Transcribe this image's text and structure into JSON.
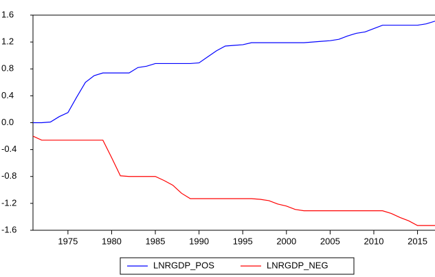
{
  "chart_data": {
    "type": "line",
    "x": [
      1971,
      1972,
      1973,
      1974,
      1975,
      1976,
      1977,
      1978,
      1979,
      1980,
      1981,
      1982,
      1983,
      1984,
      1985,
      1986,
      1987,
      1988,
      1989,
      1990,
      1991,
      1992,
      1993,
      1994,
      1995,
      1996,
      1997,
      1998,
      1999,
      2000,
      2001,
      2002,
      2003,
      2004,
      2005,
      2006,
      2007,
      2008,
      2009,
      2010,
      2011,
      2012,
      2013,
      2014,
      2015,
      2016,
      2017
    ],
    "series": [
      {
        "name": "LNRGDP_POS",
        "color": "#0000ff",
        "values": [
          0.0,
          0.0,
          0.01,
          0.09,
          0.15,
          0.38,
          0.6,
          0.7,
          0.74,
          0.74,
          0.74,
          0.74,
          0.82,
          0.84,
          0.88,
          0.88,
          0.88,
          0.88,
          0.88,
          0.89,
          0.98,
          1.07,
          1.14,
          1.15,
          1.16,
          1.19,
          1.19,
          1.19,
          1.19,
          1.19,
          1.19,
          1.19,
          1.2,
          1.21,
          1.22,
          1.24,
          1.29,
          1.33,
          1.35,
          1.4,
          1.45,
          1.45,
          1.45,
          1.45,
          1.45,
          1.47,
          1.51
        ]
      },
      {
        "name": "LNRGDP_NEG",
        "color": "#ff0000",
        "values": [
          -0.2,
          -0.26,
          -0.26,
          -0.26,
          -0.26,
          -0.26,
          -0.26,
          -0.26,
          -0.26,
          -0.52,
          -0.79,
          -0.8,
          -0.8,
          -0.8,
          -0.8,
          -0.86,
          -0.93,
          -1.05,
          -1.13,
          -1.13,
          -1.13,
          -1.13,
          -1.13,
          -1.13,
          -1.13,
          -1.13,
          -1.14,
          -1.16,
          -1.21,
          -1.24,
          -1.29,
          -1.31,
          -1.31,
          -1.31,
          -1.31,
          -1.31,
          -1.31,
          -1.31,
          -1.31,
          -1.31,
          -1.31,
          -1.35,
          -1.41,
          -1.46,
          -1.53,
          -1.53,
          -1.53
        ]
      }
    ],
    "xlim": [
      1971,
      2017
    ],
    "xticks": [
      1975,
      1980,
      1985,
      1990,
      1995,
      2000,
      2005,
      2010,
      2015
    ],
    "ylim": [
      -1.6,
      1.6
    ],
    "yticks": [
      -1.6,
      -1.2,
      -0.8,
      -0.4,
      {
        "value": 0,
        "label": "0.0"
      },
      0.4,
      0.8,
      1.2,
      1.6
    ],
    "legend": "bottom"
  }
}
